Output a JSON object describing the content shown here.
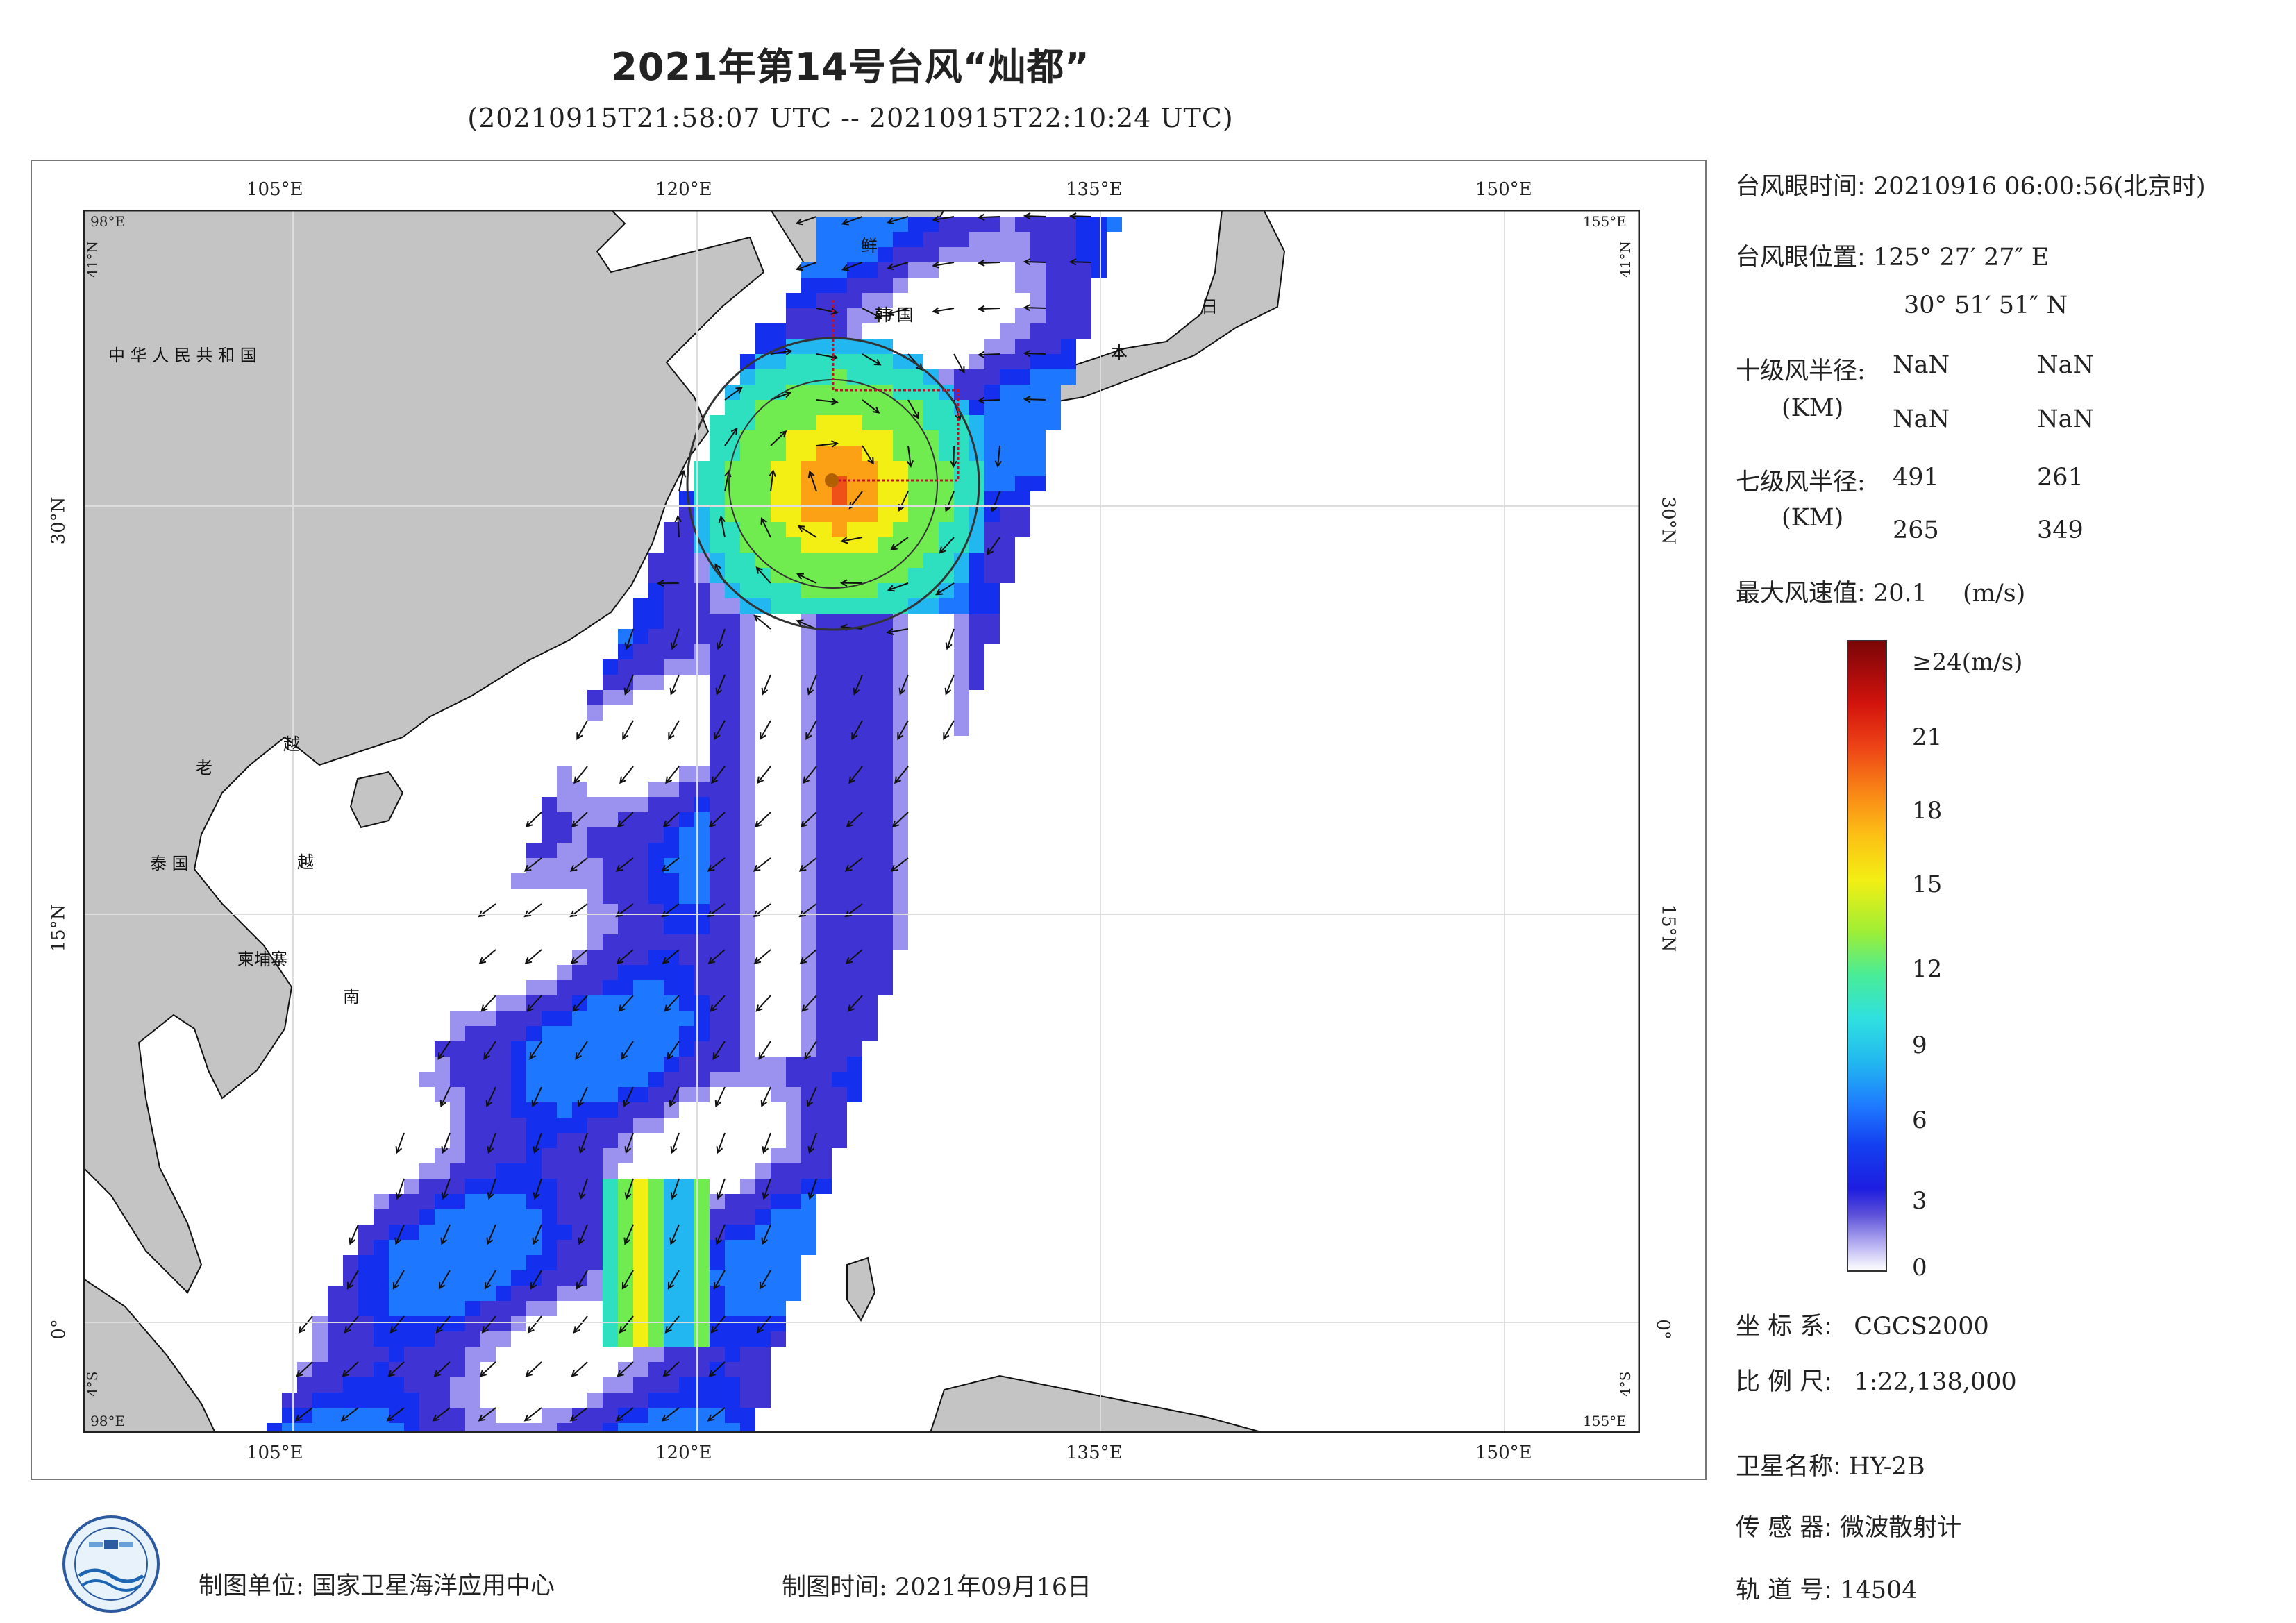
{
  "header": {
    "title": "2021年第14号台风“灿都”",
    "subtitle": "(20210915T21:58:07 UTC -- 20210915T22:10:24 UTC)"
  },
  "map": {
    "lon_ticks": [
      "105°E",
      "120°E",
      "135°E",
      "150°E"
    ],
    "lat_ticks": [
      "30°N",
      "15°N",
      "0°"
    ],
    "corner_labels": {
      "top_left_lon": "98°E",
      "top_left_lat": "41°N",
      "top_right_lon": "155°E",
      "top_right_lat": "41°N",
      "bottom_left_lon": "98°E",
      "bottom_left_lat": "4°S",
      "bottom_right_lon": "155°E",
      "bottom_right_lat": "4°S"
    },
    "place_labels": {
      "china": "中 华 人 民 共 和 国",
      "korea_north": "鲜",
      "korea_south": "韩 国",
      "japan_1": "日",
      "japan_2": "本",
      "laos": "老",
      "vietnam_1": "越",
      "vietnam_2": "越",
      "vietnam_3": "南",
      "thailand": "泰 国",
      "cambodia": "柬埔寨"
    },
    "colors": {
      "land": "#c4c4c4",
      "sea": "#ffffff",
      "coast": "#111111",
      "grid": "#e6e6e6",
      "track_box": "#c0102a"
    }
  },
  "info": {
    "eye_time_label": "台风眼时间:",
    "eye_time_value": "20210916 06:00:56(北京时)",
    "eye_pos_label": "台风眼位置:",
    "eye_pos_lon": "125° 27′ 27″ E",
    "eye_pos_lat": "30° 51′ 51″ N",
    "r10_label": "十级风半径:",
    "r10_unit": "(KM)",
    "r10_values": [
      "NaN",
      "NaN",
      "NaN",
      "NaN"
    ],
    "r7_label": "七级风半径:",
    "r7_unit": "(KM)",
    "r7_values": [
      "491",
      "261",
      "265",
      "349"
    ],
    "max_wind_label": "最大风速值:",
    "max_wind_value": "20.1",
    "max_wind_unit": "(m/s)"
  },
  "colorbar": {
    "ticks": [
      "≥24(m/s)",
      "21",
      "18",
      "15",
      "12",
      "9",
      "6",
      "3",
      "0"
    ],
    "range": [
      0,
      24
    ]
  },
  "meta": {
    "crs_label": "坐 标 系:",
    "crs_value": "CGCS2000",
    "scale_label": "比 例 尺:",
    "scale_value": "1:22,138,000",
    "sat_label": "卫星名称:",
    "sat_value": "HY-2B",
    "sensor_label": "传 感 器:",
    "sensor_value": "微波散射计",
    "orbit_label": "轨 道 号:",
    "orbit_value": "14504",
    "producer_label": "制图单位:",
    "producer_value": "国家卫星海洋应用中心",
    "date_label": "制图时间:",
    "date_value": "2021年09月16日"
  }
}
